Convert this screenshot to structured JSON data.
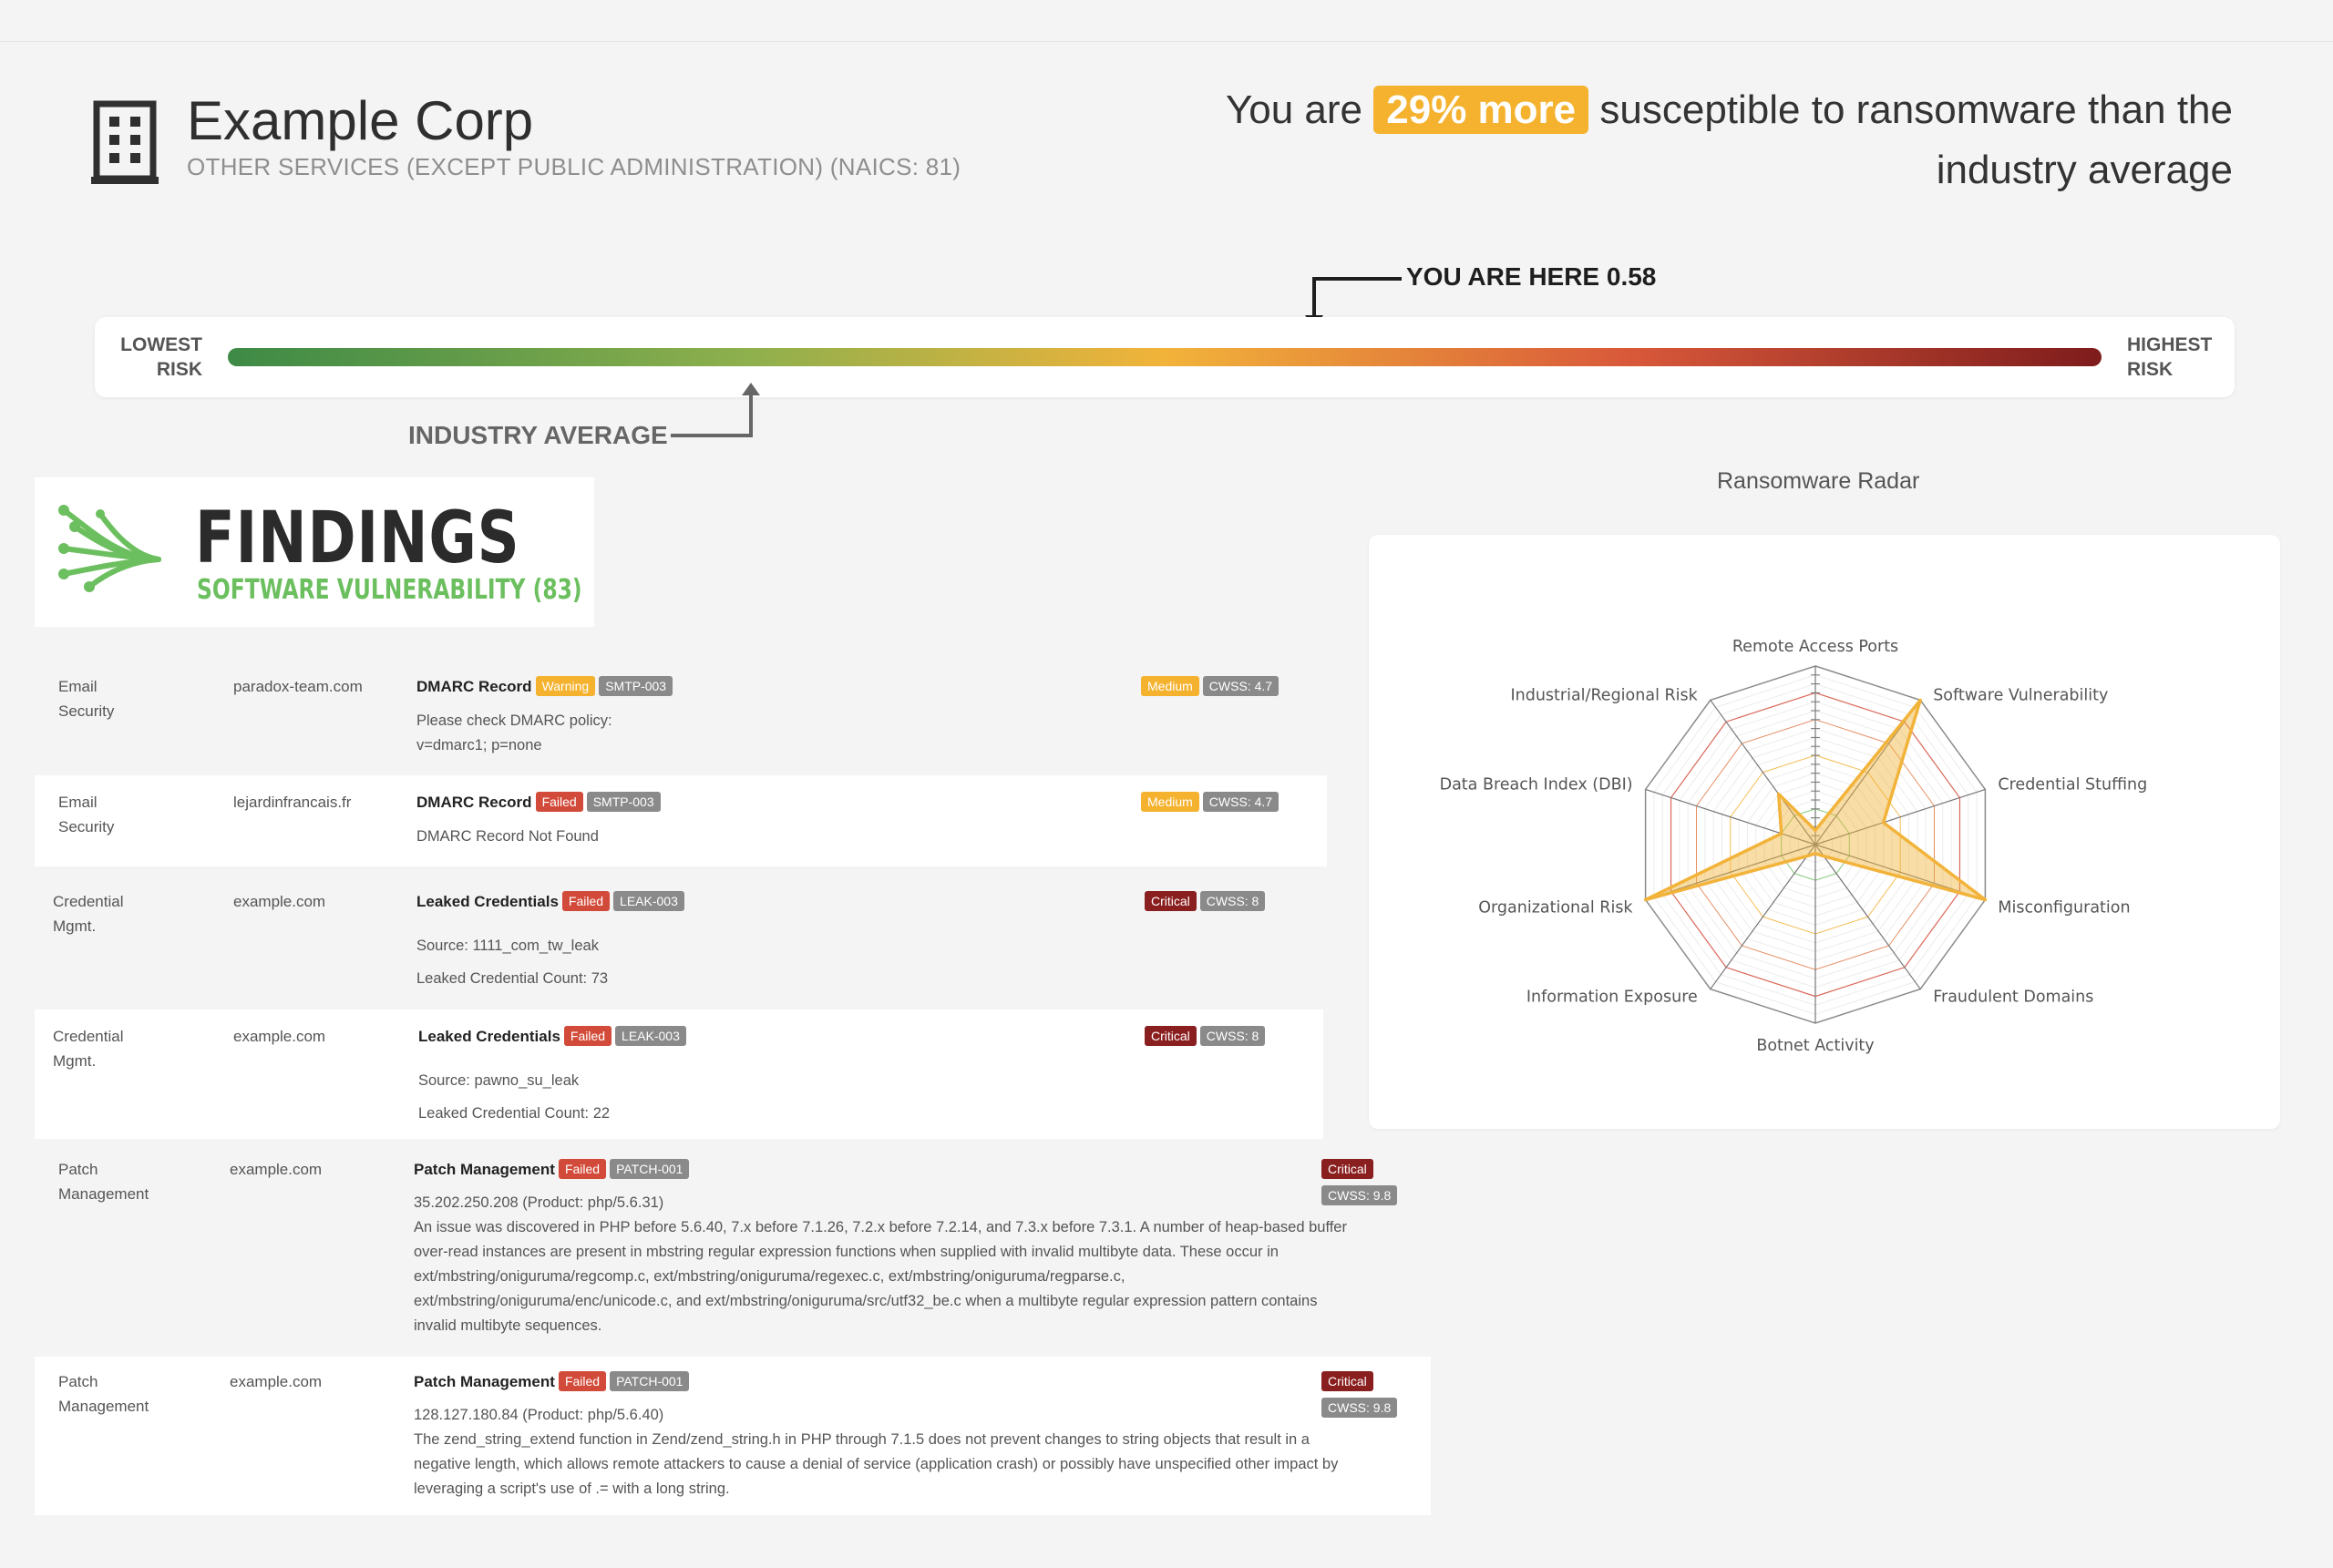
{
  "header": {
    "company_name": "Example Corp",
    "industry": "OTHER SERVICES (EXCEPT PUBLIC ADMINISTRATION) (NAICS: 81)",
    "headline_prefix": "You are",
    "headline_badge": "29% more",
    "headline_suffix": "susceptible to ransomware than the industry average"
  },
  "risk_scale": {
    "lowest_label_1": "LOWEST",
    "lowest_label_2": "RISK",
    "highest_label_1": "HIGHEST",
    "highest_label_2": "RISK",
    "you_are_here_label": "YOU ARE HERE 0.58",
    "you_are_here_value": 0.58,
    "industry_average_label": "INDUSTRY AVERAGE",
    "industry_average_value": 0.28,
    "colors": [
      "#3d8a46",
      "#f2b33a",
      "#7e1c1c"
    ]
  },
  "findings": {
    "title": "FINDINGS",
    "subtitle": "SOFTWARE VULNERABILITY (83)",
    "rows": [
      {
        "category_1": "Email",
        "category_2": "Security",
        "domain": "paradox-team.com",
        "title": "DMARC Record",
        "status": "Warning",
        "code": "SMTP-003",
        "severity": "Medium",
        "cwss": "CWSS: 4.7",
        "desc_1": "Please check DMARC policy:",
        "desc_2": "v=dmarc1; p=none"
      },
      {
        "category_1": "Email",
        "category_2": "Security",
        "domain": "lejardinfrancais.fr",
        "title": "DMARC Record",
        "status": "Failed",
        "code": "SMTP-003",
        "severity": "Medium",
        "cwss": "CWSS: 4.7",
        "desc_1": "DMARC Record Not Found"
      },
      {
        "category_1": "Credential",
        "category_2": "Mgmt.",
        "domain": "example.com",
        "title": "Leaked Credentials",
        "status": "Failed",
        "code": "LEAK-003",
        "severity": "Critical",
        "cwss": "CWSS: 8",
        "desc_1": "Source: 1111_com_tw_leak",
        "desc_2": "Leaked Credential Count: 73"
      },
      {
        "category_1": "Credential",
        "category_2": "Mgmt.",
        "domain": "example.com",
        "title": "Leaked Credentials",
        "status": "Failed",
        "code": "LEAK-003",
        "severity": "Critical",
        "cwss": "CWSS: 8",
        "desc_1": "Source: pawno_su_leak",
        "desc_2": "Leaked Credential Count: 22"
      },
      {
        "category_1": "Patch",
        "category_2": "Management",
        "domain": "example.com",
        "title": "Patch Management",
        "status": "Failed",
        "code": "PATCH-001",
        "severity": "Critical",
        "cwss": "CWSS: 9.8",
        "desc_1": "35.202.250.208 (Product: php/5.6.31)",
        "desc_2": "An issue was discovered in PHP before 5.6.40, 7.x before 7.1.26, 7.2.x before 7.2.14, and 7.3.x before 7.3.1. A number of heap-based buffer over-read instances are present in mbstring regular expression functions when supplied with invalid multibyte data. These occur in ext/mbstring/oniguruma/regcomp.c, ext/mbstring/oniguruma/regexec.c, ext/mbstring/oniguruma/regparse.c, ext/mbstring/oniguruma/enc/unicode.c, and ext/mbstring/oniguruma/src/utf32_be.c when a multibyte regular expression pattern contains invalid multibyte sequences."
      },
      {
        "category_1": "Patch",
        "category_2": "Management",
        "domain": "example.com",
        "title": "Patch Management",
        "status": "Failed",
        "code": "PATCH-001",
        "severity": "Critical",
        "cwss": "CWSS: 9.8",
        "desc_1": "128.127.180.84 (Product: php/5.6.40)",
        "desc_2": "The zend_string_extend function in Zend/zend_string.h in PHP through 7.1.5 does not prevent changes to string objects that result in a negative length, which allows remote attackers to cause a denial of service (application crash) or possibly have unspecified other impact by leveraging a script's use of .= with a long string."
      }
    ]
  },
  "radar": {
    "title": "Ransomware Radar",
    "axes": [
      "Remote Access Ports",
      "Software Vulnerability",
      "Credential Stuffing",
      "Misconfiguration",
      "Fraudulent Domains",
      "Botnet Activity",
      "Information Exposure",
      "Organizational Risk",
      "Data Breach Index (DBI)",
      "Industrial/Regional Risk"
    ],
    "values": [
      0.08,
      1.0,
      0.4,
      1.0,
      0.08,
      0.05,
      0.08,
      1.0,
      0.2,
      0.35
    ],
    "series_color": "#f2b33a",
    "ring_colors": [
      "#6cbf5e",
      "#f2b33a",
      "#e07a4a",
      "#d24b3a"
    ]
  }
}
